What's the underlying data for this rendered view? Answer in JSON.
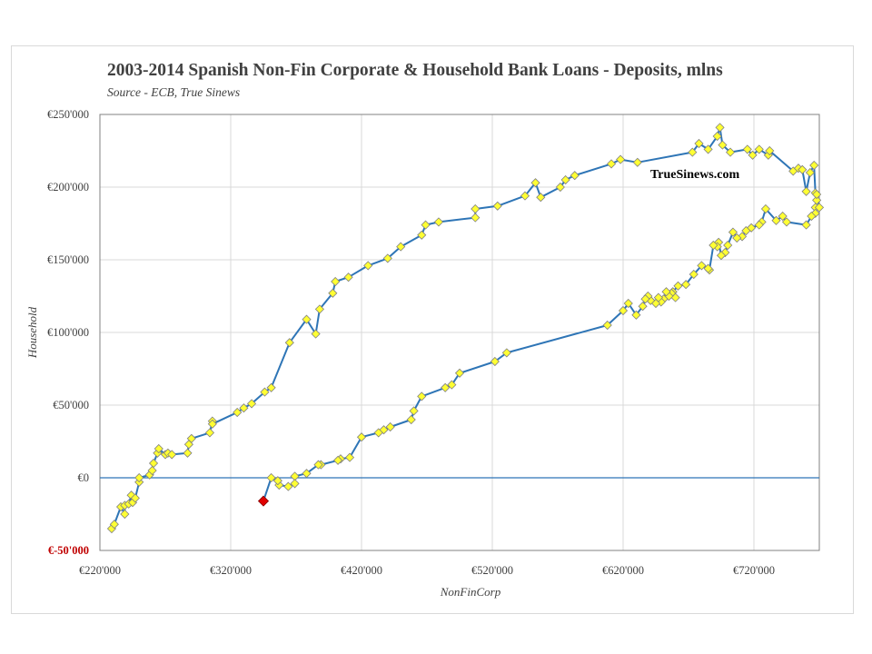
{
  "chart_data": {
    "type": "scatter",
    "title": "2003-2014 Spanish Non-Fin Corporate & Household Bank Loans - Deposits, mlns",
    "subtitle": "Source - ECB, True Sinews",
    "xlabel": "NonFinCorp",
    "ylabel": "Household",
    "xlim": [
      220000,
      770000
    ],
    "ylim": [
      -50000,
      250000
    ],
    "x_ticks": [
      220000,
      320000,
      420000,
      520000,
      620000,
      720000
    ],
    "x_tick_labels": [
      "€220'000",
      "€320'000",
      "€420'000",
      "€520'000",
      "€620'000",
      "€720'000"
    ],
    "y_ticks": [
      -50000,
      0,
      50000,
      100000,
      150000,
      200000,
      250000
    ],
    "y_tick_labels": [
      "€-50'000",
      "€0",
      "€50'000",
      "€100'000",
      "€150'000",
      "€200'000",
      "€250'000"
    ],
    "grid": true,
    "annotation": "TrueSinews.com",
    "colors": {
      "line": "#2e75b6",
      "marker_fill": "#ffff33",
      "marker_stroke": "#7f7f7f",
      "last_marker": "#e00000",
      "axis_negative_label": "#c00000"
    },
    "series": [
      {
        "x": [
          229000,
          231000,
          236000,
          239000,
          239000,
          242000,
          244000,
          245000,
          247000,
          250000,
          250000,
          258000,
          260000,
          261000,
          264000,
          265000,
          270000,
          272000,
          275000,
          287000,
          288000,
          290000,
          304000,
          306000,
          306000,
          325000,
          330000,
          336000,
          346000,
          351000,
          365000,
          378000,
          385000,
          388000,
          398000,
          400000,
          410000,
          425000,
          440000,
          450000,
          466000,
          469000,
          479000,
          507000,
          507000,
          524000,
          545000,
          553000,
          557000,
          572000,
          576000,
          583000,
          611000,
          618000,
          631000,
          673000,
          678000,
          685000,
          692000,
          694000,
          696000,
          702000,
          715000,
          719000,
          724000,
          731000,
          732000,
          750000,
          754000,
          757000,
          760000,
          763000,
          766000,
          767000,
          768000,
          767000,
          770000,
          768000,
          767000,
          764000,
          760000,
          745000,
          742000,
          737000,
          729000,
          726000,
          724000,
          718000,
          714000,
          711000,
          707000,
          704000,
          700000,
          698000,
          695000,
          693000,
          692000,
          689000,
          686000,
          685000,
          680000,
          674000,
          668000,
          662000,
          658000,
          660000,
          657000,
          655000,
          653000,
          651000,
          649000,
          647000,
          645000,
          641000,
          639000,
          637000,
          635000,
          630000,
          624000,
          620000,
          608000,
          531000,
          522000,
          495000,
          489000,
          484000,
          466000,
          460000,
          458000,
          442000,
          437000,
          433000,
          420000,
          411000,
          404000,
          402000,
          389000,
          387000,
          378000,
          369000,
          369000,
          364000,
          357000,
          356000,
          351000,
          345000
        ],
        "y": [
          -35000,
          -32000,
          -20000,
          -25000,
          -19000,
          -18000,
          -12000,
          -17000,
          -14000,
          -3000,
          0,
          2000,
          5000,
          10000,
          17000,
          20000,
          16000,
          17000,
          16000,
          17000,
          23000,
          27000,
          31000,
          39000,
          37000,
          45000,
          48000,
          51000,
          59000,
          62000,
          93000,
          109000,
          99000,
          116000,
          127000,
          135000,
          138000,
          146000,
          151000,
          159000,
          167000,
          174000,
          176000,
          179000,
          185000,
          187000,
          194000,
          203000,
          193000,
          200000,
          205000,
          208000,
          216000,
          219000,
          217000,
          224000,
          230000,
          226000,
          235000,
          241000,
          229000,
          224000,
          226000,
          222000,
          226000,
          222000,
          225000,
          211000,
          213000,
          212000,
          197000,
          210000,
          215000,
          196000,
          191000,
          186000,
          186000,
          195000,
          182000,
          180000,
          174000,
          176000,
          180000,
          177000,
          185000,
          176000,
          174000,
          172000,
          170000,
          166000,
          165000,
          169000,
          160000,
          155000,
          153000,
          162000,
          159000,
          160000,
          143000,
          144000,
          146000,
          140000,
          133000,
          132000,
          128000,
          124000,
          127000,
          125000,
          128000,
          123000,
          121000,
          124000,
          120000,
          122000,
          125000,
          123000,
          118000,
          112000,
          120000,
          115000,
          105000,
          86000,
          80000,
          72000,
          64000,
          62000,
          56000,
          46000,
          40000,
          35000,
          33000,
          31000,
          28000,
          14000,
          13000,
          12000,
          9000,
          9000,
          3000,
          1000,
          -4000,
          -6000,
          -5000,
          -2000,
          0,
          -16000
        ]
      }
    ]
  }
}
